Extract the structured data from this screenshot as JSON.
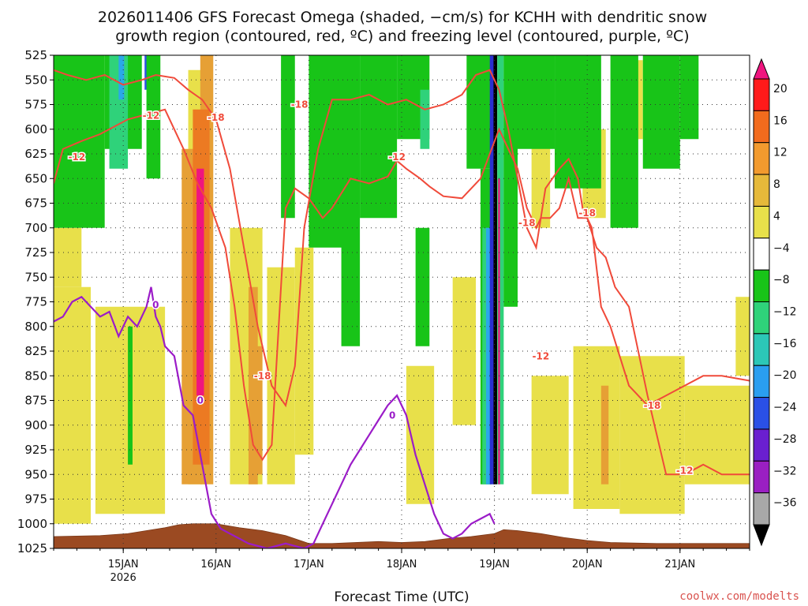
{
  "title": {
    "line1": "2026011406 GFS Forecast Omega (shaded, −cm/s) for KCHH with dendritic snow",
    "line2": "growth region (contoured, red, ºC) and freezing level (contoured, purple, ºC)"
  },
  "credit": "coolwx.com/modelts",
  "chart_data": {
    "type": "time-height cross-section",
    "xlabel": "Forecast Time (UTC)",
    "ylabel": "",
    "x_unit": "days after 2026-01-14 06Z",
    "xlim": [
      0,
      7.5
    ],
    "x_ticks": [
      {
        "x": 0.75,
        "label": "15JAN",
        "sub": "2026"
      },
      {
        "x": 1.75,
        "label": "16JAN",
        "sub": ""
      },
      {
        "x": 2.75,
        "label": "17JAN",
        "sub": ""
      },
      {
        "x": 3.75,
        "label": "18JAN",
        "sub": ""
      },
      {
        "x": 4.75,
        "label": "19JAN",
        "sub": ""
      },
      {
        "x": 5.75,
        "label": "20JAN",
        "sub": ""
      },
      {
        "x": 6.75,
        "label": "21JAN",
        "sub": ""
      }
    ],
    "y_ticks": [
      "525",
      "550",
      "575",
      "600",
      "625",
      "650",
      "675",
      "700",
      "725",
      "750",
      "775",
      "800",
      "825",
      "850",
      "875",
      "900",
      "925",
      "950",
      "975",
      "1000",
      "1025"
    ],
    "ylim": [
      525,
      1025
    ],
    "colorbar": {
      "labels": [
        "20",
        "16",
        "12",
        "8",
        "4",
        "−4",
        "−8",
        "−12",
        "−16",
        "−20",
        "−24",
        "−28",
        "−32",
        "−36"
      ],
      "colors": [
        "#ff1a1a",
        "#f26b1d",
        "#f29a2e",
        "#e6b93a",
        "#e8e04a",
        "#ffffff",
        "#18c418",
        "#2fd27a",
        "#2cc7b7",
        "#2a9ef0",
        "#2a50e6",
        "#6a1fd0",
        "#9a1fc2",
        "#a8a8a8"
      ],
      "top_color": "#f0157f",
      "bottom_color": "#000000"
    },
    "shaded_regions": [
      {
        "cat": "yellow",
        "x0": 0.0,
        "x1": 0.4,
        "p0": 760,
        "p1": 1000
      },
      {
        "cat": "yellow",
        "x0": 0.0,
        "x1": 0.3,
        "p0": 700,
        "p1": 760
      },
      {
        "cat": "yellow",
        "x0": 0.45,
        "x1": 1.2,
        "p0": 780,
        "p1": 990
      },
      {
        "cat": "yellow",
        "x0": 1.45,
        "x1": 1.65,
        "p0": 540,
        "p1": 960
      },
      {
        "cat": "yellow",
        "x0": 1.9,
        "x1": 2.25,
        "p0": 700,
        "p1": 960
      },
      {
        "cat": "yellow",
        "x0": 2.3,
        "x1": 2.6,
        "p0": 740,
        "p1": 960
      },
      {
        "cat": "yellow",
        "x0": 2.6,
        "x1": 2.8,
        "p0": 720,
        "p1": 930
      },
      {
        "cat": "yellow",
        "x0": 3.8,
        "x1": 4.1,
        "p0": 840,
        "p1": 980
      },
      {
        "cat": "yellow",
        "x0": 4.3,
        "x1": 4.55,
        "p0": 750,
        "p1": 900
      },
      {
        "cat": "yellow",
        "x0": 5.15,
        "x1": 5.55,
        "p0": 850,
        "p1": 970
      },
      {
        "cat": "yellow",
        "x0": 5.6,
        "x1": 6.1,
        "p0": 820,
        "p1": 985
      },
      {
        "cat": "yellow",
        "x0": 6.1,
        "x1": 6.8,
        "p0": 830,
        "p1": 990
      },
      {
        "cat": "yellow",
        "x0": 6.8,
        "x1": 7.5,
        "p0": 860,
        "p1": 960
      },
      {
        "cat": "yellow",
        "x0": 5.15,
        "x1": 5.35,
        "p0": 560,
        "p1": 700
      },
      {
        "cat": "yellow",
        "x0": 5.7,
        "x1": 5.95,
        "p0": 600,
        "p1": 690
      },
      {
        "cat": "yellow",
        "x0": 6.2,
        "x1": 6.35,
        "p0": 530,
        "p1": 610
      },
      {
        "cat": "yellow",
        "x0": 7.35,
        "x1": 7.5,
        "p0": 770,
        "p1": 850
      },
      {
        "cat": "orange",
        "x0": 1.38,
        "x1": 1.6,
        "p0": 620,
        "p1": 960
      },
      {
        "cat": "orange",
        "x0": 1.58,
        "x1": 1.72,
        "p0": 525,
        "p1": 960
      },
      {
        "cat": "orange",
        "x0": 2.1,
        "x1": 2.2,
        "p0": 760,
        "p1": 960
      },
      {
        "cat": "orange",
        "x0": 2.15,
        "x1": 2.25,
        "p0": 820,
        "p1": 950
      },
      {
        "cat": "orange",
        "x0": 5.9,
        "x1": 5.98,
        "p0": 860,
        "p1": 960
      },
      {
        "cat": "darkorange",
        "x0": 1.5,
        "x1": 1.68,
        "p0": 580,
        "p1": 940
      },
      {
        "cat": "magenta",
        "x0": 1.54,
        "x1": 1.62,
        "p0": 640,
        "p1": 870
      },
      {
        "cat": "green",
        "x0": 0.0,
        "x1": 0.55,
        "p0": 525,
        "p1": 700
      },
      {
        "cat": "green",
        "x0": 0.55,
        "x1": 0.95,
        "p0": 525,
        "p1": 620
      },
      {
        "cat": "teal",
        "x0": 0.6,
        "x1": 0.8,
        "p0": 525,
        "p1": 640
      },
      {
        "cat": "cyan",
        "x0": 0.7,
        "x1": 0.76,
        "p0": 525,
        "p1": 570
      },
      {
        "cat": "green",
        "x0": 0.8,
        "x1": 0.85,
        "p0": 800,
        "p1": 940
      },
      {
        "cat": "blue",
        "x0": 0.98,
        "x1": 1.02,
        "p0": 525,
        "p1": 560
      },
      {
        "cat": "green",
        "x0": 1.0,
        "x1": 1.15,
        "p0": 525,
        "p1": 650
      },
      {
        "cat": "green",
        "x0": 2.45,
        "x1": 2.6,
        "p0": 525,
        "p1": 690
      },
      {
        "cat": "green",
        "x0": 2.75,
        "x1": 3.2,
        "p0": 525,
        "p1": 720
      },
      {
        "cat": "green",
        "x0": 3.1,
        "x1": 3.3,
        "p0": 525,
        "p1": 820
      },
      {
        "cat": "green",
        "x0": 3.3,
        "x1": 3.7,
        "p0": 525,
        "p1": 690
      },
      {
        "cat": "green",
        "x0": 3.7,
        "x1": 4.05,
        "p0": 525,
        "p1": 610
      },
      {
        "cat": "green",
        "x0": 3.9,
        "x1": 4.05,
        "p0": 700,
        "p1": 820
      },
      {
        "cat": "teal",
        "x0": 3.95,
        "x1": 4.05,
        "p0": 560,
        "p1": 620
      },
      {
        "cat": "green",
        "x0": 4.45,
        "x1": 4.72,
        "p0": 525,
        "p1": 640
      },
      {
        "cat": "green",
        "x0": 4.6,
        "x1": 4.72,
        "p0": 640,
        "p1": 960
      },
      {
        "cat": "teal",
        "x0": 4.62,
        "x1": 4.7,
        "p0": 700,
        "p1": 960
      },
      {
        "cat": "cyan",
        "x0": 4.66,
        "x1": 4.71,
        "p0": 700,
        "p1": 960
      },
      {
        "cat": "darkblue",
        "x0": 4.7,
        "x1": 4.75,
        "p0": 525,
        "p1": 960
      },
      {
        "cat": "black",
        "x0": 4.74,
        "x1": 4.78,
        "p0": 525,
        "p1": 960
      },
      {
        "cat": "teal",
        "x0": 4.78,
        "x1": 4.85,
        "p0": 525,
        "p1": 960
      },
      {
        "cat": "magenta",
        "x0": 4.79,
        "x1": 4.81,
        "p0": 650,
        "p1": 960
      },
      {
        "cat": "green",
        "x0": 4.85,
        "x1": 5.0,
        "p0": 525,
        "p1": 780
      },
      {
        "cat": "green",
        "x0": 5.0,
        "x1": 5.4,
        "p0": 525,
        "p1": 620
      },
      {
        "cat": "green",
        "x0": 5.4,
        "x1": 5.9,
        "p0": 525,
        "p1": 660
      },
      {
        "cat": "green",
        "x0": 6.0,
        "x1": 6.3,
        "p0": 525,
        "p1": 700
      },
      {
        "cat": "green",
        "x0": 6.35,
        "x1": 6.75,
        "p0": 525,
        "p1": 640
      },
      {
        "cat": "green",
        "x0": 6.75,
        "x1": 6.95,
        "p0": 525,
        "p1": 610
      }
    ],
    "contours_red_dgz": [
      {
        "level": "-12",
        "labels": [
          [
            1.05,
            586
          ],
          [
            0.25,
            628
          ],
          [
            3.7,
            628
          ],
          [
            5.25,
            830
          ],
          [
            6.8,
            946
          ]
        ],
        "x": [
          0.0,
          0.1,
          0.3,
          0.5,
          0.8,
          1.0,
          1.2,
          1.4,
          1.55,
          1.7,
          1.85,
          1.95,
          2.05,
          2.15,
          2.25,
          2.35,
          2.45,
          2.5,
          2.6,
          2.75,
          2.9,
          3.0,
          3.2,
          3.4,
          3.6,
          3.7,
          3.8,
          3.95,
          4.05,
          4.2,
          4.4,
          4.6,
          4.7,
          4.8,
          4.9,
          5.0,
          5.1,
          5.2,
          5.25,
          5.35,
          5.45,
          5.55,
          5.65,
          5.75,
          5.85,
          5.95,
          6.05,
          6.2,
          6.4,
          6.6,
          6.8,
          7.0,
          7.2,
          7.4,
          7.5
        ],
        "p": [
          655,
          620,
          612,
          605,
          590,
          585,
          580,
          620,
          655,
          680,
          720,
          780,
          860,
          920,
          935,
          920,
          760,
          680,
          660,
          670,
          690,
          680,
          650,
          655,
          648,
          632,
          640,
          650,
          658,
          668,
          670,
          650,
          625,
          600,
          620,
          640,
          680,
          700,
          690,
          690,
          680,
          650,
          690,
          690,
          720,
          730,
          760,
          780,
          870,
          950,
          950,
          940,
          950,
          950,
          950
        ]
      },
      {
        "level": "-18",
        "labels": [
          [
            1.75,
            588
          ],
          [
            2.65,
            575
          ],
          [
            2.25,
            850
          ],
          [
            5.1,
            695
          ],
          [
            5.75,
            685
          ],
          [
            6.45,
            880
          ]
        ],
        "x": [
          0.0,
          0.15,
          0.35,
          0.55,
          0.75,
          0.95,
          1.1,
          1.3,
          1.45,
          1.6,
          1.75,
          1.9,
          2.05,
          2.2,
          2.35,
          2.5,
          2.6,
          2.7,
          2.85,
          3.0,
          3.2,
          3.4,
          3.6,
          3.8,
          4.0,
          4.2,
          4.4,
          4.55,
          4.7,
          4.8,
          4.9,
          5.0,
          5.1,
          5.2,
          5.3,
          5.45,
          5.55,
          5.65,
          5.7,
          5.8,
          5.9,
          6.0,
          6.2,
          6.4,
          6.6,
          6.8,
          7.0,
          7.2,
          7.5
        ],
        "p": [
          540,
          545,
          550,
          545,
          555,
          550,
          545,
          548,
          560,
          570,
          590,
          640,
          720,
          800,
          860,
          880,
          840,
          700,
          620,
          570,
          570,
          565,
          575,
          570,
          580,
          575,
          565,
          545,
          540,
          560,
          600,
          650,
          700,
          720,
          660,
          640,
          630,
          650,
          680,
          700,
          780,
          800,
          860,
          880,
          870,
          860,
          850,
          850,
          855
        ]
      }
    ],
    "contour_purple_freezing": {
      "level": "0",
      "labels": [
        [
          1.1,
          778
        ],
        [
          1.58,
          875
        ],
        [
          3.65,
          890
        ]
      ],
      "x": [
        0.0,
        0.1,
        0.2,
        0.3,
        0.4,
        0.5,
        0.6,
        0.7,
        0.8,
        0.9,
        1.0,
        1.05,
        1.1,
        1.15,
        1.2,
        1.3,
        1.4,
        1.5,
        1.6,
        1.7,
        1.8,
        1.9,
        2.0,
        2.1,
        2.3,
        2.5,
        2.7,
        2.8,
        2.9,
        3.0,
        3.1,
        3.2,
        3.3,
        3.4,
        3.5,
        3.6,
        3.7,
        3.8,
        3.9,
        4.0,
        4.1,
        4.2,
        4.3,
        4.4,
        4.5,
        4.6,
        4.7,
        4.75
      ],
      "p": [
        795,
        790,
        775,
        770,
        780,
        790,
        785,
        810,
        790,
        800,
        780,
        760,
        790,
        800,
        820,
        830,
        880,
        890,
        940,
        990,
        1005,
        1010,
        1015,
        1020,
        1025,
        1020,
        1025,
        1020,
        1000,
        980,
        960,
        940,
        925,
        910,
        895,
        880,
        870,
        890,
        930,
        960,
        990,
        1010,
        1015,
        1010,
        1000,
        995,
        990,
        1000
      ]
    },
    "terrain": {
      "x": [
        0.0,
        0.5,
        0.8,
        1.0,
        1.2,
        1.35,
        1.5,
        1.75,
        2.0,
        2.25,
        2.5,
        2.75,
        3.0,
        3.25,
        3.5,
        3.75,
        4.0,
        4.25,
        4.5,
        4.75,
        4.85,
        5.0,
        5.25,
        5.5,
        5.75,
        6.0,
        6.5,
        7.0,
        7.5
      ],
      "p": [
        1013,
        1012,
        1010,
        1007,
        1004,
        1001,
        1000,
        1000,
        1004,
        1007,
        1012,
        1020,
        1020,
        1019,
        1018,
        1019,
        1018,
        1015,
        1013,
        1010,
        1006,
        1007,
        1010,
        1014,
        1017,
        1019,
        1020,
        1020,
        1020
      ]
    }
  }
}
